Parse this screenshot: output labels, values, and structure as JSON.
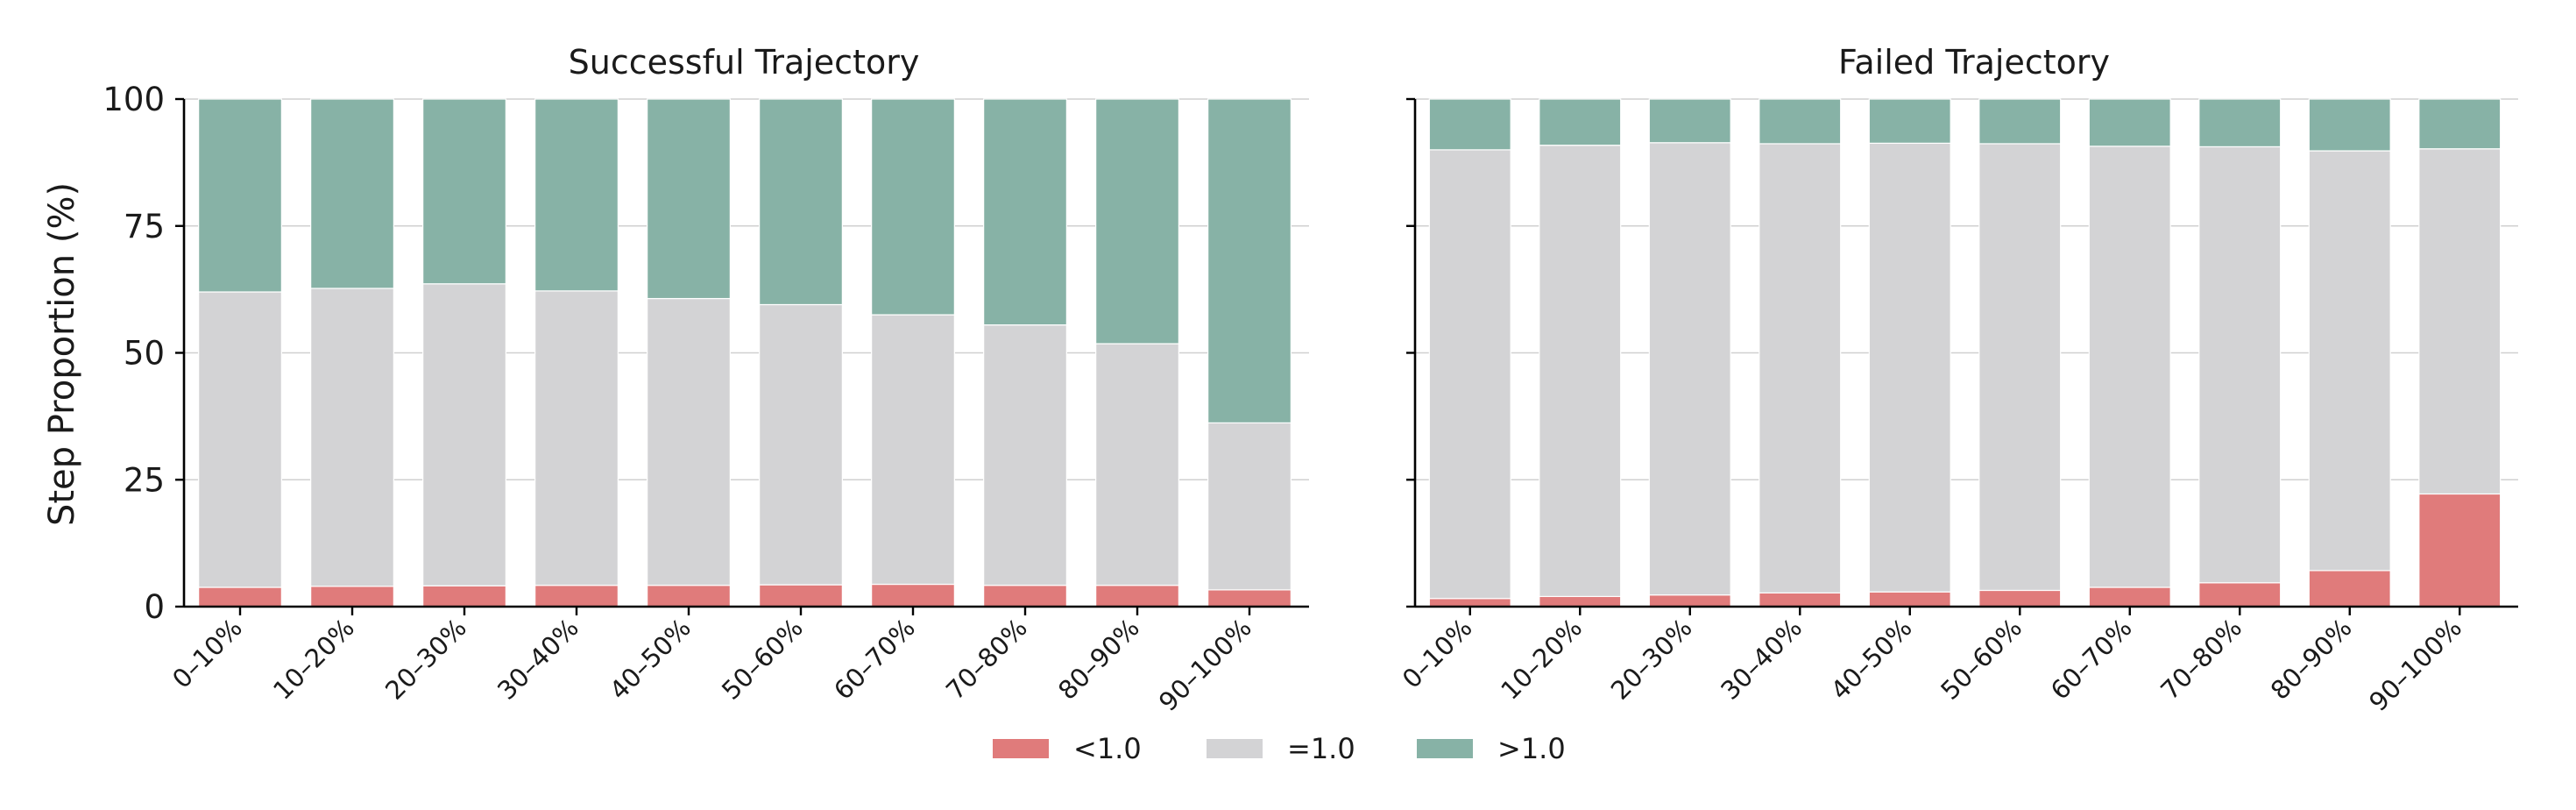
{
  "chart_data": [
    {
      "type": "bar",
      "stacked": true,
      "title": "Successful Trajectory",
      "ylabel": "Step Proportion (%)",
      "xlabel": "",
      "ylim": [
        0,
        100
      ],
      "yticks": [
        0,
        25,
        50,
        75,
        100
      ],
      "grid": "horizontal",
      "categories": [
        "0–10%",
        "10–20%",
        "20–30%",
        "30–40%",
        "40–50%",
        "50–60%",
        "60–70%",
        "70–80%",
        "80–90%",
        "90–100%"
      ],
      "series": [
        {
          "name": "<1.0",
          "color": "#e07b7b",
          "values": [
            3.8,
            4.0,
            4.1,
            4.2,
            4.2,
            4.3,
            4.4,
            4.2,
            4.2,
            3.3
          ]
        },
        {
          "name": "=1.0",
          "color": "#d3d3d5",
          "values": [
            58.2,
            58.7,
            59.5,
            58.0,
            56.5,
            55.2,
            53.1,
            51.3,
            47.6,
            32.9
          ]
        },
        {
          "name": ">1.0",
          "color": "#87b2a6",
          "values": [
            38.0,
            37.3,
            36.4,
            37.8,
            39.3,
            40.5,
            42.5,
            44.5,
            48.2,
            63.8
          ]
        }
      ]
    },
    {
      "type": "bar",
      "stacked": true,
      "title": "Failed Trajectory",
      "ylim": [
        0,
        100
      ],
      "yticks": [
        0,
        25,
        50,
        75,
        100
      ],
      "grid": "horizontal",
      "categories": [
        "0–10%",
        "10–20%",
        "20–30%",
        "30–40%",
        "40–50%",
        "50–60%",
        "60–70%",
        "70–80%",
        "80–90%",
        "90–100%"
      ],
      "series": [
        {
          "name": "<1.0",
          "color": "#e07b7b",
          "values": [
            1.6,
            2.0,
            2.3,
            2.7,
            2.9,
            3.2,
            3.8,
            4.7,
            7.1,
            22.2
          ]
        },
        {
          "name": "=1.0",
          "color": "#d3d3d5",
          "values": [
            88.4,
            88.9,
            89.1,
            88.5,
            88.4,
            88.0,
            86.9,
            85.9,
            82.7,
            68.0
          ]
        },
        {
          "name": ">1.0",
          "color": "#87b2a6",
          "values": [
            10.0,
            9.1,
            8.6,
            8.8,
            8.7,
            8.8,
            9.3,
            9.4,
            10.2,
            9.8
          ]
        }
      ]
    }
  ],
  "legend": {
    "placement": "bottom-center",
    "items": [
      {
        "label": "<1.0",
        "color": "#e07b7b"
      },
      {
        "label": "=1.0",
        "color": "#d3d3d5"
      },
      {
        "label": ">1.0",
        "color": "#87b2a6"
      }
    ]
  }
}
